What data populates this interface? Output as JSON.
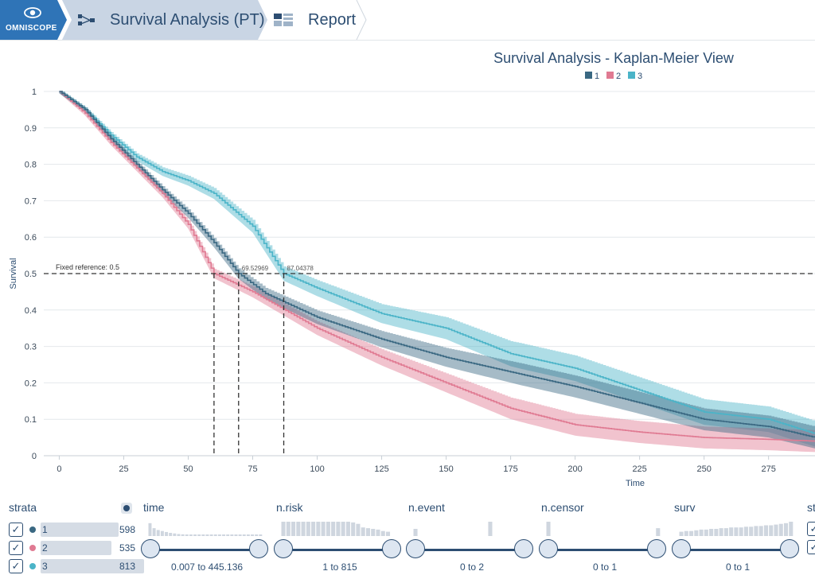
{
  "app": {
    "logo_text": "OMNISCOPE"
  },
  "breadcrumb": {
    "flow_label": "Survival Analysis (PT)",
    "report_label": "Report"
  },
  "colors": {
    "stratum1": "#3a6882",
    "stratum2": "#e07a92",
    "stratum3": "#4bb4c8"
  },
  "chart_data": {
    "type": "line",
    "title": "Survival Analysis - Kaplan-Meier View",
    "xlabel": "Time",
    "ylabel": "Survival",
    "xlim": [
      -6,
      293
    ],
    "ylim": [
      0,
      1
    ],
    "x_ticks": [
      "0",
      "25",
      "50",
      "75",
      "100",
      "125",
      "150",
      "175",
      "200",
      "225",
      "250",
      "275"
    ],
    "y_ticks": [
      "0",
      "0.1",
      "0.2",
      "0.3",
      "0.4",
      "0.5",
      "0.6",
      "0.7",
      "0.8",
      "0.9",
      "1"
    ],
    "legend": [
      "1",
      "2",
      "3"
    ],
    "reference": {
      "value": 0.5,
      "label": "Fixed reference: 0.5"
    },
    "median_labels": [
      "69.52969",
      "87.04378"
    ],
    "medians": [
      60,
      69.53,
      87.04
    ],
    "series": [
      {
        "name": "1",
        "points": [
          [
            0,
            1
          ],
          [
            10,
            0.95
          ],
          [
            20,
            0.87
          ],
          [
            30,
            0.8
          ],
          [
            40,
            0.73
          ],
          [
            50,
            0.665
          ],
          [
            60,
            0.585
          ],
          [
            69.53,
            0.5
          ],
          [
            80,
            0.445
          ],
          [
            100,
            0.38
          ],
          [
            125,
            0.32
          ],
          [
            150,
            0.27
          ],
          [
            175,
            0.23
          ],
          [
            200,
            0.19
          ],
          [
            225,
            0.145
          ],
          [
            250,
            0.1
          ],
          [
            275,
            0.08
          ],
          [
            293,
            0.05
          ]
        ],
        "band": 0.03
      },
      {
        "name": "2",
        "points": [
          [
            0,
            1
          ],
          [
            10,
            0.94
          ],
          [
            20,
            0.86
          ],
          [
            30,
            0.79
          ],
          [
            40,
            0.72
          ],
          [
            50,
            0.635
          ],
          [
            60,
            0.5
          ],
          [
            75,
            0.45
          ],
          [
            90,
            0.39
          ],
          [
            100,
            0.35
          ],
          [
            125,
            0.27
          ],
          [
            150,
            0.2
          ],
          [
            175,
            0.13
          ],
          [
            200,
            0.085
          ],
          [
            225,
            0.065
          ],
          [
            250,
            0.05
          ],
          [
            275,
            0.045
          ],
          [
            293,
            0.04
          ]
        ],
        "band": 0.03
      },
      {
        "name": "3",
        "points": [
          [
            0,
            1
          ],
          [
            10,
            0.95
          ],
          [
            20,
            0.88
          ],
          [
            30,
            0.82
          ],
          [
            40,
            0.78
          ],
          [
            50,
            0.755
          ],
          [
            60,
            0.72
          ],
          [
            75,
            0.63
          ],
          [
            87.04,
            0.5
          ],
          [
            100,
            0.46
          ],
          [
            125,
            0.39
          ],
          [
            150,
            0.35
          ],
          [
            175,
            0.28
          ],
          [
            200,
            0.24
          ],
          [
            225,
            0.18
          ],
          [
            250,
            0.12
          ],
          [
            275,
            0.1
          ],
          [
            293,
            0.06
          ]
        ],
        "band": 0.035
      }
    ]
  },
  "filters": {
    "strata": {
      "header": "strata",
      "items": [
        {
          "label": "1",
          "count": "598",
          "fill": 0.74
        },
        {
          "label": "2",
          "count": "535",
          "fill": 0.66
        },
        {
          "label": "3",
          "count": "813",
          "fill": 1.0
        }
      ]
    },
    "columns": [
      {
        "name": "time",
        "range": "0.007 to 445.136",
        "hist": [
          0.9,
          0.55,
          0.42,
          0.35,
          0.28,
          0.22,
          0.18,
          0.14,
          0.12,
          0.1,
          0.08,
          0.07,
          0.06,
          0.05,
          0.05,
          0.04,
          0.04,
          0.03,
          0.03,
          0.03,
          0.02,
          0.02,
          0.02,
          0.02,
          0.02,
          0.01,
          0.01,
          0.01
        ]
      },
      {
        "name": "n.risk",
        "range": "1 to 815",
        "hist": [
          1,
          1,
          1,
          1,
          1,
          1,
          1,
          1,
          1,
          1,
          1,
          1,
          1,
          1,
          0.95,
          0.85,
          0.6,
          0.55,
          0.5,
          0.45,
          0.35,
          0.3,
          0
        ]
      },
      {
        "name": "n.event",
        "range": "0 to 2",
        "hist": [
          0.5,
          0,
          0,
          0,
          0,
          0,
          0,
          0,
          0,
          0,
          0,
          0,
          0,
          0,
          0,
          1,
          0,
          0,
          0,
          0,
          0,
          0,
          0
        ]
      },
      {
        "name": "n.censor",
        "range": "0 to 1",
        "hist": [
          1,
          0,
          0,
          0,
          0,
          0,
          0,
          0,
          0,
          0,
          0,
          0,
          0,
          0,
          0,
          0,
          0,
          0,
          0,
          0,
          0,
          0,
          0.55
        ]
      },
      {
        "name": "surv",
        "range": "0 to 1",
        "hist": [
          0.3,
          0.35,
          0.35,
          0.4,
          0.45,
          0.45,
          0.5,
          0.5,
          0.55,
          0.55,
          0.6,
          0.6,
          0.6,
          0.65,
          0.65,
          0.7,
          0.7,
          0.75,
          0.75,
          0.8,
          0.85,
          0.9,
          1
        ]
      },
      {
        "name": "st",
        "range": "",
        "hist": []
      }
    ]
  }
}
